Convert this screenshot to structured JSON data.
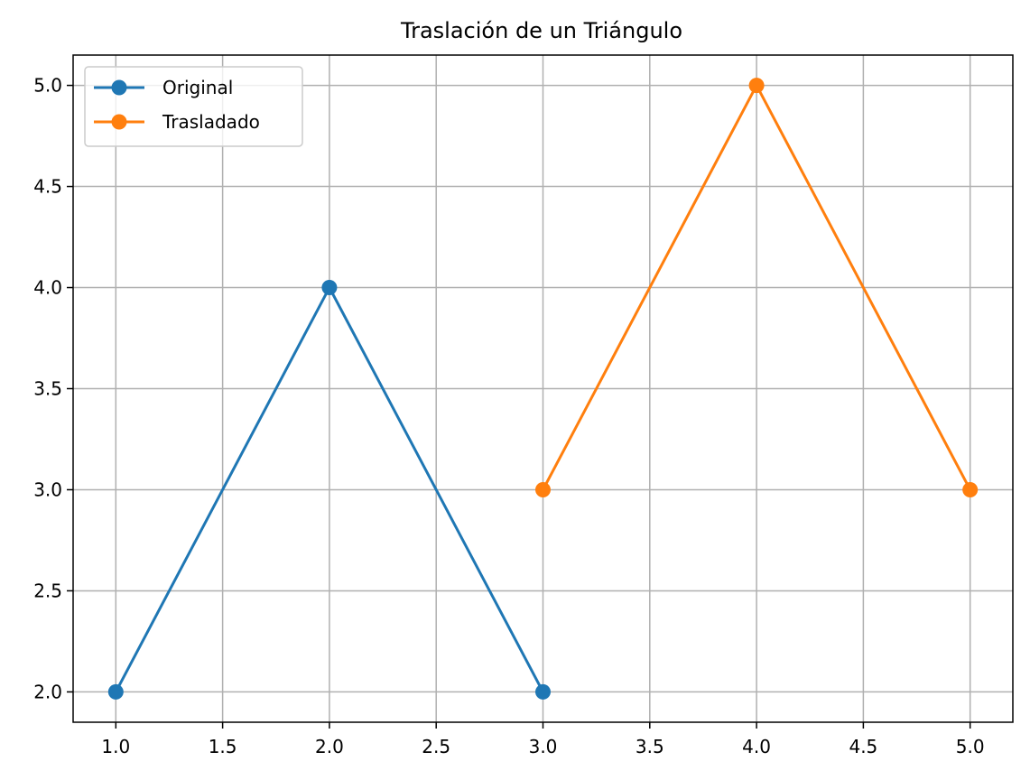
{
  "chart_data": {
    "type": "line",
    "title": "Traslación de un Triángulo",
    "xlabel": "",
    "ylabel": "",
    "xlim": [
      0.8,
      5.2
    ],
    "ylim": [
      1.85,
      5.15
    ],
    "xticks": [
      1.0,
      1.5,
      2.0,
      2.5,
      3.0,
      3.5,
      4.0,
      4.5,
      5.0
    ],
    "yticks": [
      2.0,
      2.5,
      3.0,
      3.5,
      4.0,
      4.5,
      5.0
    ],
    "xtick_labels": [
      "1.0",
      "1.5",
      "2.0",
      "2.5",
      "3.0",
      "3.5",
      "4.0",
      "4.5",
      "5.0"
    ],
    "ytick_labels": [
      "2.0",
      "2.5",
      "3.0",
      "3.5",
      "4.0",
      "4.5",
      "5.0"
    ],
    "grid": true,
    "legend_position": "top-left",
    "series": [
      {
        "name": "Original",
        "color": "#1f77b4",
        "x": [
          1,
          2,
          3
        ],
        "y": [
          2,
          4,
          2
        ]
      },
      {
        "name": "Trasladado",
        "color": "#ff7f0e",
        "x": [
          3,
          4,
          5
        ],
        "y": [
          3,
          5,
          3
        ]
      }
    ]
  }
}
